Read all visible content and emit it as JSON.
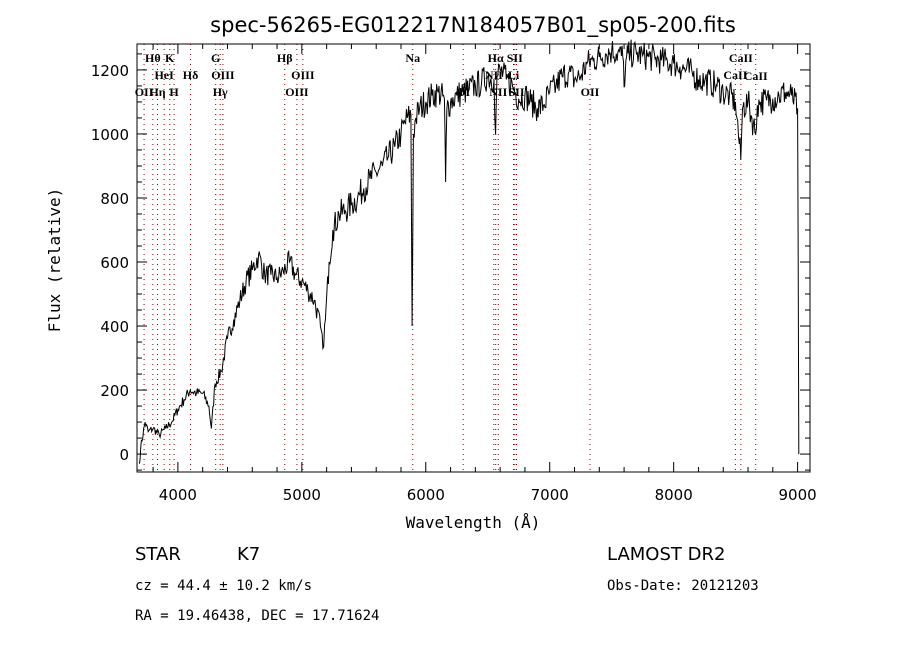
{
  "chart_data": {
    "type": "line",
    "title": "spec-56265-EG012217N184057B01_sp05-200.fits",
    "xlabel": "Wavelength (Å)",
    "ylabel": "Flux (relative)",
    "xlim": [
      3670,
      9100
    ],
    "ylim": [
      -56,
      1281
    ],
    "xticks": [
      4000,
      5000,
      6000,
      7000,
      8000,
      9000
    ],
    "xtick_labels": [
      "4000",
      "5000",
      "6000",
      "7000",
      "8000",
      "9000"
    ],
    "yticks": [
      0,
      200,
      400,
      600,
      800,
      1000,
      1200
    ],
    "ytick_labels": [
      "0",
      "200",
      "400",
      "600",
      "800",
      "1000",
      "1200"
    ],
    "grid": false,
    "series": [
      {
        "name": "spectrum",
        "x": [
          3690,
          3700,
          3735,
          3760,
          3800,
          3850,
          3900,
          3950,
          4000,
          4050,
          4100,
          4150,
          4200,
          4250,
          4270,
          4300,
          4350,
          4400,
          4450,
          4500,
          4550,
          4600,
          4650,
          4700,
          4750,
          4800,
          4850,
          4900,
          4950,
          5000,
          5050,
          5100,
          5150,
          5170,
          5190,
          5220,
          5250,
          5300,
          5350,
          5400,
          5450,
          5500,
          5550,
          5600,
          5650,
          5700,
          5750,
          5800,
          5850,
          5880,
          5890,
          5900,
          5920,
          5950,
          6000,
          6050,
          6100,
          6150,
          6160,
          6170,
          6200,
          6250,
          6300,
          6350,
          6400,
          6450,
          6500,
          6550,
          6563,
          6575,
          6600,
          6650,
          6700,
          6750,
          6800,
          6850,
          6900,
          6950,
          7000,
          7050,
          7100,
          7150,
          7200,
          7250,
          7300,
          7350,
          7400,
          7450,
          7500,
          7550,
          7590,
          7605,
          7620,
          7650,
          7700,
          7750,
          7800,
          7850,
          7900,
          7950,
          8000,
          8050,
          8100,
          8150,
          8200,
          8250,
          8300,
          8350,
          8400,
          8450,
          8498,
          8510,
          8542,
          8555,
          8600,
          8662,
          8675,
          8700,
          8750,
          8800,
          8850,
          8900,
          8950,
          9000,
          9005,
          9010
        ],
        "y": [
          -30,
          20,
          100,
          70,
          80,
          60,
          80,
          100,
          140,
          170,
          200,
          190,
          190,
          150,
          80,
          220,
          260,
          360,
          420,
          480,
          540,
          575,
          620,
          560,
          560,
          550,
          570,
          600,
          560,
          540,
          510,
          480,
          400,
          330,
          420,
          600,
          700,
          750,
          760,
          780,
          800,
          830,
          860,
          880,
          900,
          930,
          960,
          1000,
          1050,
          1060,
          400,
          1000,
          1050,
          1080,
          1100,
          1120,
          1130,
          1110,
          850,
          1080,
          1100,
          1120,
          1130,
          1140,
          1150,
          1160,
          1180,
          1170,
          1000,
          1180,
          1200,
          1170,
          1150,
          1110,
          1120,
          1100,
          1080,
          1090,
          1130,
          1150,
          1180,
          1190,
          1170,
          1180,
          1220,
          1230,
          1240,
          1250,
          1260,
          1255,
          1240,
          1150,
          1240,
          1250,
          1250,
          1245,
          1240,
          1235,
          1230,
          1225,
          1220,
          1210,
          1200,
          1190,
          1170,
          1165,
          1160,
          1150,
          1130,
          1120,
          1100,
          1050,
          920,
          1080,
          1100,
          1000,
          1090,
          1100,
          1105,
          1110,
          1120,
          1130,
          1120,
          1080,
          600,
          0
        ]
      }
    ],
    "lines": [
      {
        "name": "OII",
        "wave": 3727,
        "row": 3
      },
      {
        "name": "Hθ",
        "wave": 3798,
        "row": 1
      },
      {
        "name": "Hη",
        "wave": 3835,
        "row": 3
      },
      {
        "name": "HeI",
        "wave": 3889,
        "row": 2
      },
      {
        "name": "K",
        "wave": 3934,
        "row": 1
      },
      {
        "name": "H",
        "wave": 3969,
        "row": 3
      },
      {
        "name": "Hδ",
        "wave": 4102,
        "row": 2
      },
      {
        "name": "G",
        "wave": 4305,
        "row": 1
      },
      {
        "name": "Hγ",
        "wave": 4341,
        "row": 3
      },
      {
        "name": "OIII",
        "wave": 4363,
        "row": 2
      },
      {
        "name": "Hβ",
        "wave": 4862,
        "row": 1
      },
      {
        "name": "OIII",
        "wave": 4960,
        "row": 3
      },
      {
        "name": "OIII",
        "wave": 5008,
        "row": 2
      },
      {
        "name": "Na",
        "wave": 5895,
        "row": 1
      },
      {
        "name": "OI",
        "wave": 6302,
        "row": 3
      },
      {
        "name": "Hα",
        "wave": 6564,
        "row": 1
      },
      {
        "name": "NII",
        "wave": 6549,
        "row": 2
      },
      {
        "name": "NII",
        "wave": 6585,
        "row": 3
      },
      {
        "name": "Li",
        "wave": 6708,
        "row": 2
      },
      {
        "name": "SII",
        "wave": 6718,
        "row": 1
      },
      {
        "name": "SII",
        "wave": 6732,
        "row": 3
      },
      {
        "name": "OII",
        "wave": 7325,
        "row": 3
      },
      {
        "name": "CaII",
        "wave": 8498,
        "row": 2
      },
      {
        "name": "CaII",
        "wave": 8542,
        "row": 1
      },
      {
        "name": "CaII",
        "wave": 8662,
        "row": 0
      }
    ]
  },
  "info": {
    "class": "STAR",
    "subclass": "K7",
    "survey": "LAMOST DR2",
    "cz": "cz = 44.4 ± 10.2 km/s",
    "obs_date": "Obs-Date: 20121203",
    "coords": "RA =  19.46438, DEC =  17.71624"
  },
  "colors": {
    "line_marker": "#8b0000",
    "spectrum": "#000000"
  }
}
